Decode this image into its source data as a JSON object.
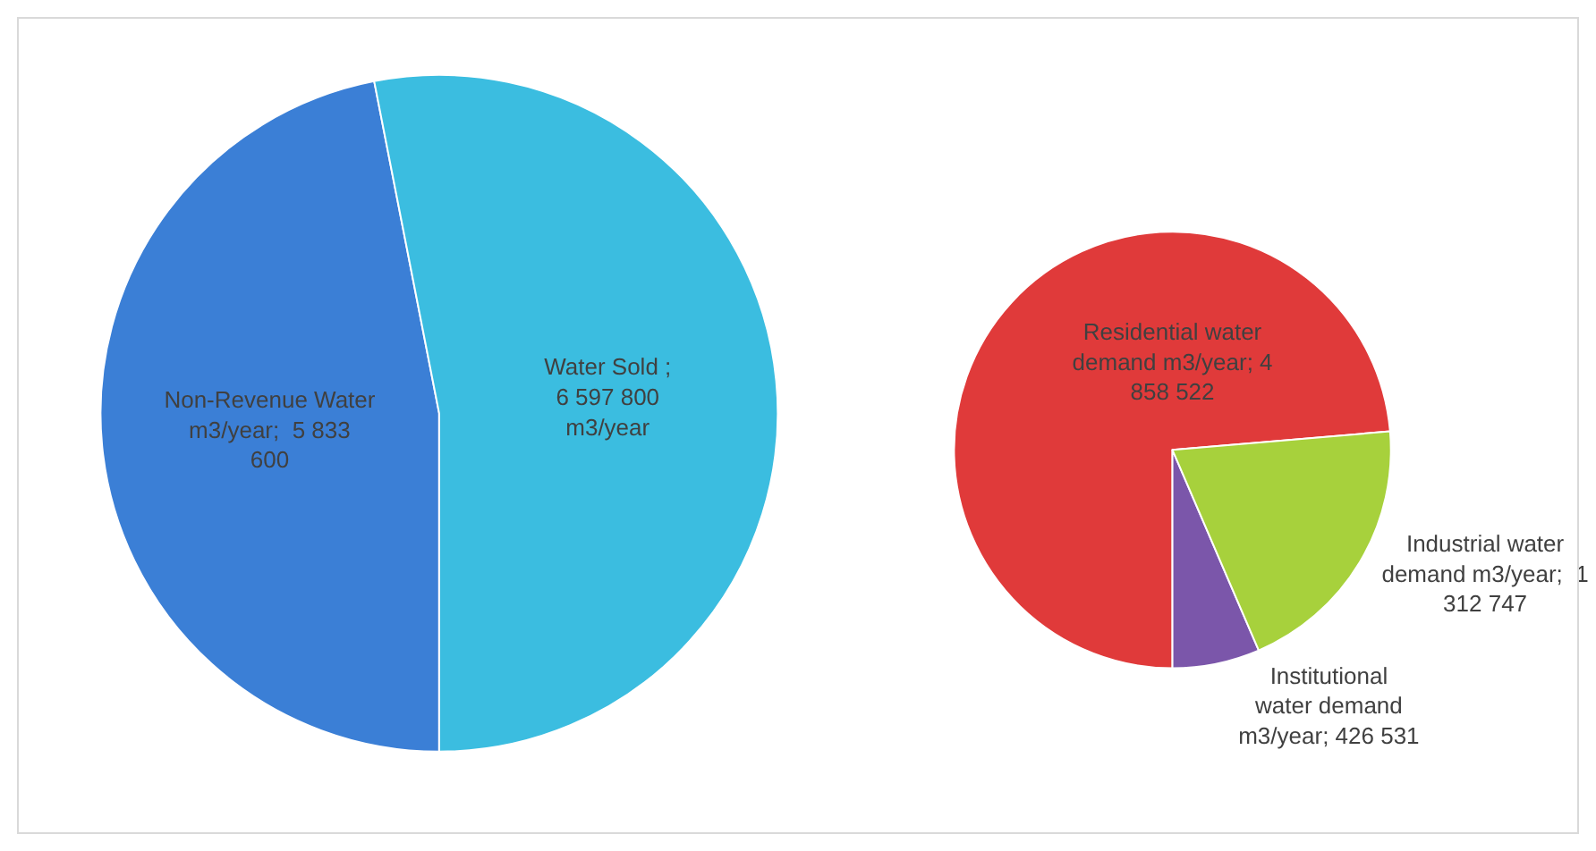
{
  "chart_data": [
    {
      "type": "pie",
      "categories": [
        "Non-Revenue Water m3/year;  5 833 600",
        "Water Sold ; 6 597 800 m3/year"
      ],
      "values": [
        5833600,
        6597800
      ],
      "colors": [
        "#3b7fd6",
        "#3bbde0"
      ]
    },
    {
      "type": "pie",
      "categories": [
        "Residential water demand m3/year; 4 858 522",
        "Institutional water demand m3/year; 426 531",
        "Industrial water demand m3/year;  1 312 747"
      ],
      "values": [
        4858522,
        426531,
        1312747
      ],
      "colors": [
        "#e03a3a",
        "#7b56aa",
        "#a7d13c"
      ]
    }
  ]
}
